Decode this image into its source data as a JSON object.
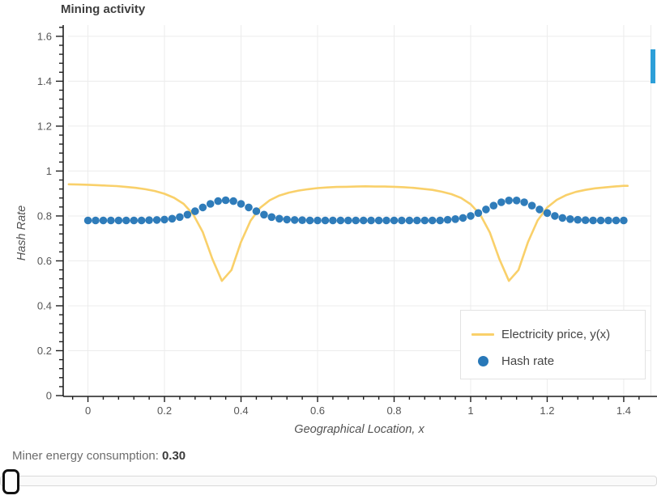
{
  "header": {
    "title": "Mining activity"
  },
  "colors": {
    "electricity_line": "#f9d06a",
    "hash_dot": "#2878b8",
    "grid": "#ececec",
    "axis": "#1f1f1f",
    "tick_label": "#565656",
    "scroll_thumb": "#2d9fd8"
  },
  "chart_data": {
    "type": "line+scatter",
    "title": "Mining activity",
    "xlabel": "Geographical Location, x",
    "ylabel": "Hash Rate",
    "x_range": [
      -0.052,
      1.47
    ],
    "y_range": [
      0,
      1.65
    ],
    "grid": true,
    "legend_position": "bottom-right",
    "x_ticks": {
      "values": [
        0,
        0.2,
        0.4,
        0.6,
        0.8,
        1,
        1.2,
        1.4
      ],
      "labels": [
        "0",
        "0.2",
        "0.4",
        "0.6",
        "0.8",
        "1",
        "1.2",
        "1.4"
      ],
      "minor_step": 0.04
    },
    "y_ticks": {
      "values": [
        0,
        0.2,
        0.4,
        0.6,
        0.8,
        1,
        1.2,
        1.4,
        1.6
      ],
      "labels": [
        "0",
        "0.2",
        "0.4",
        "0.6",
        "0.8",
        "1",
        "1.2",
        "1.4",
        "1.6"
      ],
      "minor_step": 0.04
    },
    "series": [
      {
        "name": "Electricity price, y(x)",
        "type": "line",
        "color": "#f9d06a",
        "x": [
          -0.05,
          -0.025,
          0,
          0.025,
          0.05,
          0.075,
          0.1,
          0.125,
          0.15,
          0.175,
          0.2,
          0.225,
          0.25,
          0.275,
          0.3,
          0.325,
          0.35,
          0.375,
          0.4,
          0.425,
          0.45,
          0.475,
          0.5,
          0.525,
          0.55,
          0.575,
          0.6,
          0.625,
          0.65,
          0.675,
          0.7,
          0.725,
          0.75,
          0.775,
          0.8,
          0.825,
          0.85,
          0.875,
          0.9,
          0.925,
          0.95,
          0.975,
          1,
          1.025,
          1.05,
          1.075,
          1.1,
          1.125,
          1.15,
          1.175,
          1.2,
          1.225,
          1.25,
          1.275,
          1.3,
          1.325,
          1.35,
          1.375,
          1.4,
          1.41
        ],
        "y": [
          0.941,
          0.94,
          0.939,
          0.937,
          0.935,
          0.933,
          0.929,
          0.925,
          0.919,
          0.911,
          0.899,
          0.881,
          0.854,
          0.807,
          0.728,
          0.609,
          0.511,
          0.559,
          0.684,
          0.779,
          0.836,
          0.87,
          0.891,
          0.904,
          0.913,
          0.919,
          0.924,
          0.927,
          0.929,
          0.93,
          0.931,
          0.932,
          0.931,
          0.931,
          0.93,
          0.928,
          0.925,
          0.921,
          0.916,
          0.908,
          0.897,
          0.88,
          0.852,
          0.806,
          0.727,
          0.608,
          0.511,
          0.559,
          0.684,
          0.78,
          0.838,
          0.872,
          0.893,
          0.907,
          0.916,
          0.923,
          0.927,
          0.931,
          0.934,
          0.934
        ]
      },
      {
        "name": "Hash rate",
        "type": "scatter",
        "color": "#2878b8",
        "x": [
          0,
          0.02,
          0.04,
          0.06,
          0.08,
          0.1,
          0.12,
          0.14,
          0.16,
          0.18,
          0.2,
          0.22,
          0.24,
          0.26,
          0.28,
          0.3,
          0.32,
          0.34,
          0.36,
          0.38,
          0.4,
          0.42,
          0.44,
          0.46,
          0.48,
          0.5,
          0.52,
          0.54,
          0.56,
          0.58,
          0.6,
          0.62,
          0.64,
          0.66,
          0.68,
          0.7,
          0.72,
          0.74,
          0.76,
          0.78,
          0.8,
          0.82,
          0.84,
          0.86,
          0.88,
          0.9,
          0.92,
          0.94,
          0.96,
          0.98,
          1,
          1.02,
          1.04,
          1.06,
          1.08,
          1.1,
          1.12,
          1.14,
          1.16,
          1.18,
          1.2,
          1.22,
          1.24,
          1.26,
          1.28,
          1.3,
          1.32,
          1.34,
          1.36,
          1.38,
          1.4
        ],
        "y": [
          0.78,
          0.78,
          0.78,
          0.78,
          0.78,
          0.78,
          0.78,
          0.78,
          0.781,
          0.782,
          0.784,
          0.788,
          0.795,
          0.806,
          0.821,
          0.838,
          0.854,
          0.866,
          0.87,
          0.866,
          0.854,
          0.838,
          0.821,
          0.806,
          0.795,
          0.788,
          0.784,
          0.782,
          0.781,
          0.78,
          0.78,
          0.78,
          0.78,
          0.78,
          0.78,
          0.78,
          0.78,
          0.78,
          0.78,
          0.78,
          0.78,
          0.78,
          0.78,
          0.78,
          0.78,
          0.78,
          0.78,
          0.783,
          0.786,
          0.791,
          0.8,
          0.813,
          0.829,
          0.846,
          0.861,
          0.869,
          0.869,
          0.861,
          0.846,
          0.829,
          0.813,
          0.8,
          0.791,
          0.786,
          0.783,
          0.781,
          0.78,
          0.78,
          0.78,
          0.78,
          0.78
        ]
      }
    ]
  },
  "legend": {
    "items": [
      {
        "label": "Electricity price, y(x)",
        "swatch": "line"
      },
      {
        "label": "Hash rate",
        "swatch": "circle"
      }
    ]
  },
  "footer": {
    "label": "Miner energy consumption:",
    "value": "0.30"
  }
}
